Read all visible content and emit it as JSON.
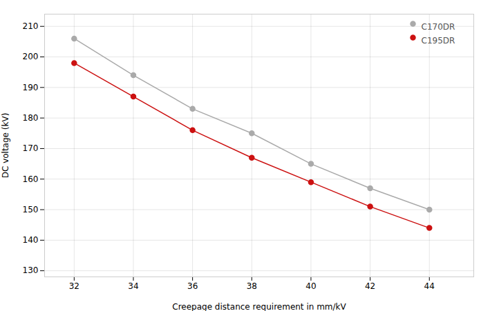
{
  "chart_data": {
    "type": "line",
    "xlabel": "Creepage distance requirement in mm/kV",
    "ylabel": "DC voltage (kV)",
    "x": [
      32,
      34,
      36,
      38,
      40,
      42,
      44
    ],
    "series": [
      {
        "name": "C170DR",
        "color": "#aaaaaa",
        "values": [
          206,
          194,
          183,
          175,
          165,
          157,
          150
        ]
      },
      {
        "name": "C195DR",
        "color": "#cc1111",
        "values": [
          198,
          187,
          176,
          167,
          159,
          151,
          144
        ]
      }
    ],
    "marker": "circle",
    "xlim": [
      31.0,
      45.5
    ],
    "ylim": [
      128,
      214
    ],
    "xticks": [
      32,
      34,
      36,
      38,
      40,
      42,
      44
    ],
    "yticks": [
      130,
      140,
      150,
      160,
      170,
      180,
      190,
      200,
      210
    ],
    "grid": true,
    "legend": "upper right"
  }
}
